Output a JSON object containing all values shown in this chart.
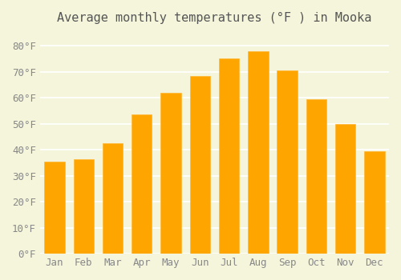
{
  "title": "Average monthly temperatures (°F ) in Mooka",
  "months": [
    "Jan",
    "Feb",
    "Mar",
    "Apr",
    "May",
    "Jun",
    "Jul",
    "Aug",
    "Sep",
    "Oct",
    "Nov",
    "Dec"
  ],
  "values": [
    35.5,
    36.5,
    42.5,
    53.5,
    62.0,
    68.5,
    75.0,
    78.0,
    70.5,
    59.5,
    50.0,
    39.5
  ],
  "bar_color": "#FFA500",
  "bar_edge_color": "#FFB733",
  "background_color": "#F5F5DC",
  "grid_color": "#FFFFFF",
  "ylim": [
    0,
    85
  ],
  "yticks": [
    0,
    10,
    20,
    30,
    40,
    50,
    60,
    70,
    80
  ],
  "ylabel_suffix": "°F",
  "title_fontsize": 11,
  "tick_fontsize": 9
}
